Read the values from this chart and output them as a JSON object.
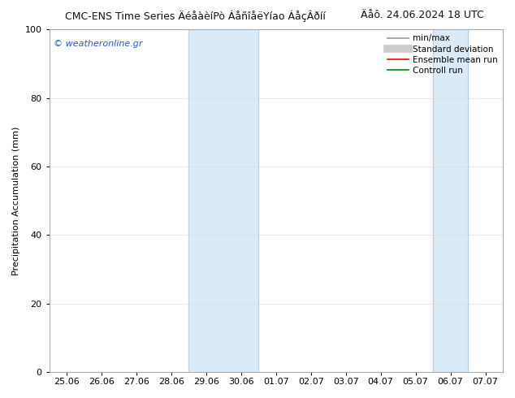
{
  "title_main": "CMC-ENS Time Series ÄéåàèíPò ÁåñîåëYíao ÁåçÂðíí",
  "title_date": "Äåô. 24.06.2024 18 UTC",
  "ylabel": "Precipitation Accumulation (mm)",
  "ylim": [
    0,
    100
  ],
  "yticks": [
    0,
    20,
    40,
    60,
    80,
    100
  ],
  "xtick_labels": [
    "25.06",
    "26.06",
    "27.06",
    "28.06",
    "29.06",
    "30.06",
    "01.07",
    "02.07",
    "03.07",
    "04.07",
    "05.07",
    "06.07",
    "07.07"
  ],
  "shaded_bands": [
    {
      "xstart": 4,
      "xend": 6,
      "color": "#dbeaf7"
    },
    {
      "xstart": 11,
      "xend": 12,
      "color": "#dbeaf7"
    }
  ],
  "band_edge_color": "#b8d4e8",
  "legend_items": [
    {
      "label": "min/max",
      "color": "#999999",
      "lw": 1.2
    },
    {
      "label": "Standard deviation",
      "color": "#cccccc",
      "lw": 7
    },
    {
      "label": "Ensemble mean run",
      "color": "#ff0000",
      "lw": 1.2
    },
    {
      "label": "Controll run",
      "color": "#008800",
      "lw": 1.2
    }
  ],
  "watermark": "© weatheronline.gr",
  "watermark_color": "#1a5ce6",
  "bg_color": "#ffffff",
  "plot_bg_color": "#ffffff",
  "grid_color": "#dddddd",
  "title_fontsize": 9,
  "date_fontsize": 9,
  "ylabel_fontsize": 8,
  "tick_fontsize": 8,
  "legend_fontsize": 7.5,
  "watermark_fontsize": 8
}
